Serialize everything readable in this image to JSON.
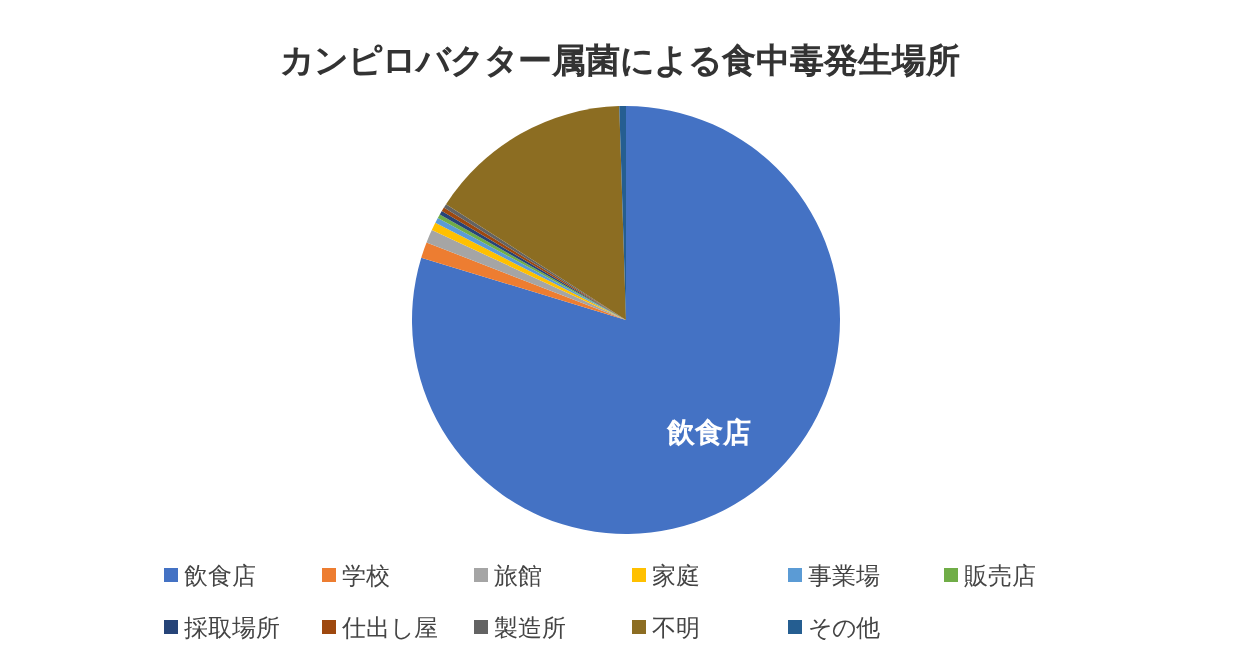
{
  "chart_data": {
    "type": "pie",
    "title": "カンピロバクター属菌による食中毒発生場所",
    "categories": [
      "飲食店",
      "学校",
      "旅館",
      "家庭",
      "事業場",
      "販売店",
      "採取場所",
      "仕出し屋",
      "製造所",
      "不明",
      "その他"
    ],
    "values": [
      79.7,
      1.2,
      1,
      0.6,
      0.4,
      0.3,
      0.3,
      0.3,
      0.3,
      15.4,
      0.5
    ],
    "colors": [
      "#4472c4",
      "#ed7d31",
      "#a5a5a5",
      "#ffc000",
      "#5b9bd5",
      "#70ad47",
      "#264478",
      "#9e480e",
      "#636363",
      "#8c6d22",
      "#255e91"
    ],
    "legend": "bottom",
    "annotations": [
      {
        "text": "飲食店",
        "x": "飲食店"
      }
    ]
  }
}
